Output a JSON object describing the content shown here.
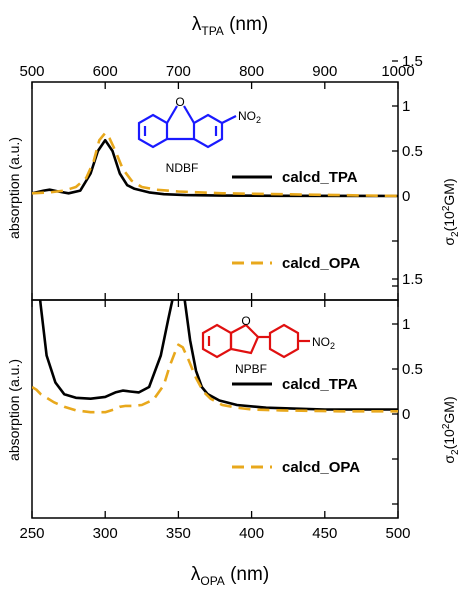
{
  "chart_data": [
    {
      "type": "line",
      "panel": "top",
      "top_axis": {
        "label": "λ",
        "label_sub": "TPA",
        "label_unit": " (nm)",
        "range": [
          500,
          1000
        ],
        "ticks": [
          "500",
          "600",
          "700",
          "800",
          "900",
          "1000"
        ]
      },
      "bottom_axis": {
        "range": [
          250,
          500
        ]
      },
      "ylabel_left": "absorption (a.u.)",
      "ylabel_right": {
        "sigma": "σ",
        "sub": "2",
        "unit_open": "(10",
        "sup": "2",
        "unit_close": "GM)"
      },
      "right_ticks": [
        {
          "value": 1.5,
          "label": "1.5"
        },
        {
          "value": 1.0,
          "label": "1"
        },
        {
          "value": 0.5,
          "label": "0.5"
        },
        {
          "value": 0.0,
          "label": "0"
        }
      ],
      "molecule_label": "NDBF",
      "molecule_color": "#1a1aff",
      "substituent": "NO",
      "substituent_sub": "2",
      "heteroatom": "O",
      "series": [
        {
          "name": "calcd_TPA",
          "style": "solid",
          "color": "#000000",
          "x": [
            250,
            258,
            262,
            268,
            275,
            283,
            290,
            295,
            300,
            305,
            310,
            315,
            320,
            330,
            340,
            355,
            380,
            420,
            500
          ],
          "y": [
            0.03,
            0.06,
            0.07,
            0.05,
            0.03,
            0.06,
            0.25,
            0.5,
            0.62,
            0.5,
            0.25,
            0.12,
            0.08,
            0.04,
            0.02,
            0.01,
            0.005,
            0.002,
            0.0
          ]
        },
        {
          "name": "calcd_OPA",
          "style": "dashed",
          "color": "#e8a81c",
          "x": [
            250,
            262,
            272,
            280,
            287,
            292,
            296,
            300,
            303,
            307,
            312,
            318,
            325,
            335,
            350,
            380,
            420,
            500
          ],
          "y": [
            0.03,
            0.04,
            0.06,
            0.1,
            0.2,
            0.38,
            0.62,
            0.7,
            0.64,
            0.5,
            0.3,
            0.17,
            0.1,
            0.07,
            0.05,
            0.03,
            0.02,
            0.0
          ]
        }
      ]
    },
    {
      "type": "line",
      "panel": "bottom",
      "bottom_axis": {
        "label": "λ",
        "label_sub": "OPA",
        "label_unit": " (nm)",
        "range": [
          250,
          500
        ],
        "ticks": [
          "250",
          "300",
          "350",
          "400",
          "450",
          "500"
        ]
      },
      "ylabel_left": "absorption (a.u.)",
      "ylabel_right": {
        "sigma": "σ",
        "sub": "2",
        "unit_open": "(10",
        "sup": "2",
        "unit_close": "GM)"
      },
      "right_ticks": [
        {
          "value": 1.5,
          "label": "1.5"
        },
        {
          "value": 1.0,
          "label": "1"
        },
        {
          "value": 0.5,
          "label": "0.5"
        },
        {
          "value": 0.0,
          "label": "0"
        }
      ],
      "molecule_label": "NPBF",
      "molecule_color": "#e01010",
      "substituent": "NO",
      "substituent_sub": "2",
      "heteroatom": "O",
      "series": [
        {
          "name": "calcd_TPA",
          "style": "solid",
          "color": "#000000",
          "x": [
            254,
            256,
            260,
            266,
            272,
            280,
            290,
            300,
            307,
            312,
            317,
            323,
            330,
            338,
            343,
            347,
            350,
            354,
            358,
            362,
            366,
            370,
            378,
            390,
            410,
            450,
            500
          ],
          "y": [
            1.5,
            1.2,
            0.65,
            0.35,
            0.22,
            0.18,
            0.17,
            0.19,
            0.24,
            0.26,
            0.25,
            0.24,
            0.3,
            0.65,
            1.05,
            1.35,
            1.48,
            1.3,
            0.82,
            0.48,
            0.3,
            0.22,
            0.15,
            0.1,
            0.07,
            0.05,
            0.05
          ]
        },
        {
          "name": "calcd_OPA",
          "style": "dashed",
          "color": "#e8a81c",
          "x": [
            250,
            253,
            256,
            260,
            265,
            272,
            280,
            290,
            300,
            306,
            310,
            314,
            318,
            325,
            333,
            340,
            344,
            348,
            350,
            353,
            357,
            362,
            367,
            372,
            380,
            390,
            400,
            420,
            460,
            500
          ],
          "y": [
            0.3,
            0.27,
            0.22,
            0.18,
            0.13,
            0.08,
            0.04,
            0.02,
            0.02,
            0.05,
            0.08,
            0.09,
            0.09,
            0.1,
            0.16,
            0.32,
            0.53,
            0.7,
            0.77,
            0.74,
            0.6,
            0.4,
            0.25,
            0.17,
            0.1,
            0.07,
            0.05,
            0.04,
            0.03,
            0.03
          ]
        }
      ]
    }
  ]
}
